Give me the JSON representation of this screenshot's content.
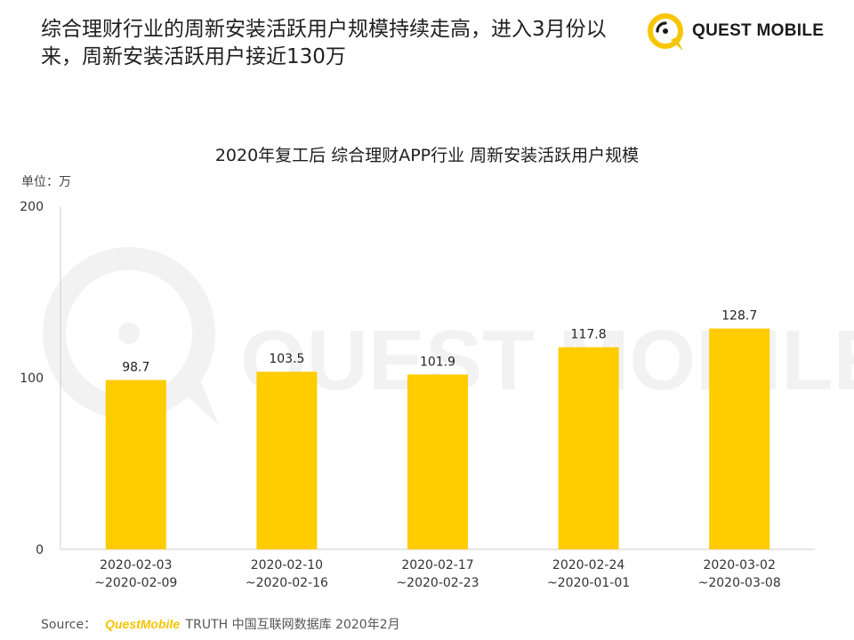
{
  "header": {
    "headline": "综合理财行业的周新安装活跃用户规模持续走高，进入3月份以来，周新安装活跃用户接近130万",
    "brand_name": "QUEST MOBILE"
  },
  "watermark_text": "QUEST MOBILE",
  "chart_data": {
    "type": "bar",
    "title": "2020年复工后 综合理财APP行业 周新安装活跃用户规模",
    "unit_label": "单位：万",
    "categories": [
      [
        "2020-02-03",
        "~2020-02-09"
      ],
      [
        "2020-02-10",
        "~2020-02-16"
      ],
      [
        "2020-02-17",
        "~2020-02-23"
      ],
      [
        "2020-02-24",
        "~2020-01-01"
      ],
      [
        "2020-03-02",
        "~2020-03-08"
      ]
    ],
    "values": [
      98.7,
      103.5,
      101.9,
      117.8,
      128.7
    ],
    "value_labels": [
      "98.7",
      "103.5",
      "101.9",
      "117.8",
      "128.7"
    ],
    "y_ticks": [
      0,
      100,
      200
    ],
    "y_tick_labels": [
      "0",
      "100",
      "200"
    ],
    "ylim": [
      0,
      200
    ],
    "grid": false,
    "legend": "none",
    "bar_color": "#ffcc00"
  },
  "footer": {
    "source_prefix": "Source：",
    "source_brand": "QuestMobile",
    "source_rest": " TRUTH 中国互联网数据库 2020年2月"
  },
  "colors": {
    "accent": "#ffcc00",
    "logo_yellow": "#f7c600",
    "axis": "#cccccc",
    "watermark": "#f2f2f2"
  }
}
